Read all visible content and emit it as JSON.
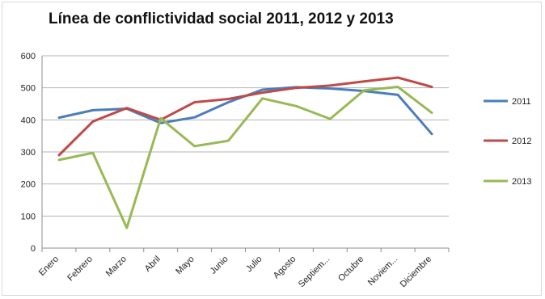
{
  "chart_data": {
    "type": "line",
    "title": "Línea de conflictividad social 2011, 2012 y 2013",
    "xlabel": "",
    "ylabel": "",
    "categories": [
      "Enero",
      "Febrero",
      "Marzo",
      "Abril",
      "Mayo",
      "Junio",
      "Julio",
      "Agosto",
      "Septiem...",
      "Octubre",
      "Noviem...",
      "Diciembre"
    ],
    "ylim": [
      0,
      600
    ],
    "yticks": [
      "0",
      "100",
      "200",
      "300",
      "400",
      "500",
      "600"
    ],
    "grid": true,
    "legend_position": "right",
    "series": [
      {
        "name": "2011",
        "color": "#4a7ebb",
        "values": [
          407,
          430,
          435,
          390,
          408,
          455,
          494,
          502,
          498,
          490,
          478,
          356
        ]
      },
      {
        "name": "2012",
        "color": "#be4b48",
        "values": [
          290,
          395,
          437,
          400,
          455,
          465,
          485,
          500,
          507,
          520,
          532,
          503
        ]
      },
      {
        "name": "2013",
        "color": "#98b954",
        "values": [
          275,
          297,
          63,
          405,
          318,
          335,
          467,
          443,
          403,
          492,
          503,
          422
        ]
      }
    ]
  }
}
